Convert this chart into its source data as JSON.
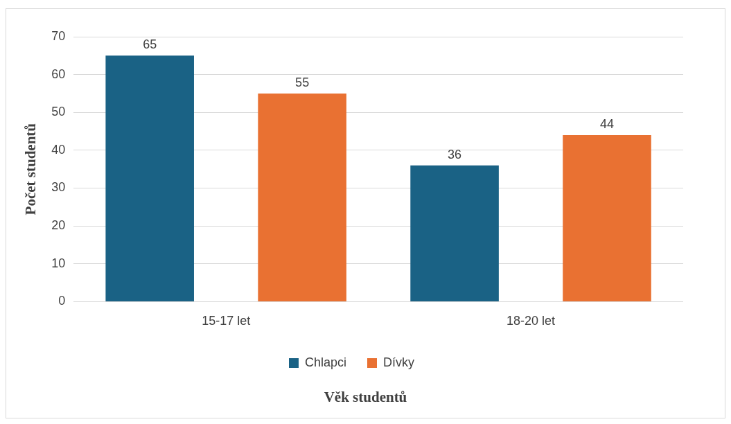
{
  "chart_data": {
    "type": "bar",
    "xlabel": "Věk studentů",
    "ylabel": "Počet studentů",
    "categories": [
      "15-17 let",
      "18-20 let"
    ],
    "series": [
      {
        "name": "Chlapci",
        "color": "#1a6285",
        "values": [
          65,
          36
        ]
      },
      {
        "name": "Dívky",
        "color": "#e97132",
        "values": [
          55,
          44
        ]
      }
    ],
    "ylim": [
      0,
      70
    ],
    "yticks": [
      0,
      10,
      20,
      30,
      40,
      50,
      60,
      70
    ],
    "grid": "y",
    "legend": "bottom",
    "data_labels": true
  }
}
